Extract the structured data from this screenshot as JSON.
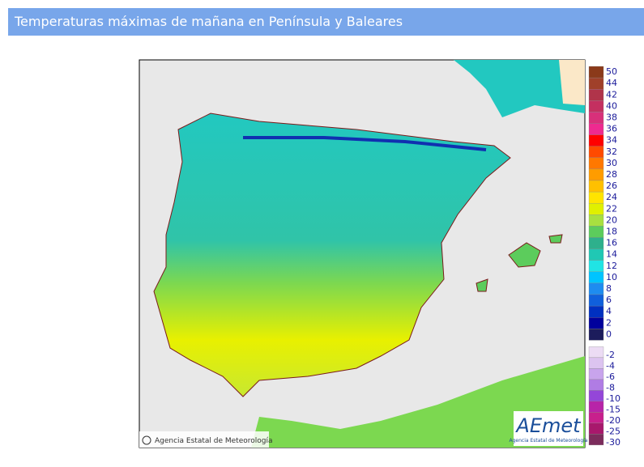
{
  "header": {
    "title": "Temperaturas máximas de mañana en Península y Baleares"
  },
  "map": {
    "credit": "Agencia Estatal de Meteorología",
    "logo": "AEmet",
    "logo_subtitle": "Agencia Estatal de Meteorología"
  },
  "legend": {
    "items": [
      {
        "value": 50,
        "color": "#8b3a1a"
      },
      {
        "value": 44,
        "color": "#a0402a"
      },
      {
        "value": 42,
        "color": "#b0344a"
      },
      {
        "value": 40,
        "color": "#c43060"
      },
      {
        "value": 38,
        "color": "#d8307a"
      },
      {
        "value": 36,
        "color": "#ee2a90"
      },
      {
        "value": 34,
        "color": "#ff0000"
      },
      {
        "value": 32,
        "color": "#ff4a00"
      },
      {
        "value": 30,
        "color": "#ff7800"
      },
      {
        "value": 28,
        "color": "#ff9c00"
      },
      {
        "value": 26,
        "color": "#ffc000"
      },
      {
        "value": 24,
        "color": "#ffe400"
      },
      {
        "value": 22,
        "color": "#e0f000"
      },
      {
        "value": 20,
        "color": "#a8e040"
      },
      {
        "value": 18,
        "color": "#5ccc5c"
      },
      {
        "value": 16,
        "color": "#2eb08c"
      },
      {
        "value": 14,
        "color": "#20c8b4"
      },
      {
        "value": 12,
        "color": "#20e4e4"
      },
      {
        "value": 10,
        "color": "#00c4ff"
      },
      {
        "value": 8,
        "color": "#1e8cf0"
      },
      {
        "value": 6,
        "color": "#1060dc"
      },
      {
        "value": 4,
        "color": "#0030c0"
      },
      {
        "value": 2,
        "color": "#00009c"
      },
      {
        "value": 0,
        "color": "#1c1c5c"
      },
      {
        "value": -2,
        "color": "#ecdcf4"
      },
      {
        "value": -4,
        "color": "#dcc4f0"
      },
      {
        "value": -6,
        "color": "#c8a4ec"
      },
      {
        "value": -8,
        "color": "#b07ce4"
      },
      {
        "value": -10,
        "color": "#9446d8"
      },
      {
        "value": -15,
        "color": "#b824a8"
      },
      {
        "value": -20,
        "color": "#c8208c"
      },
      {
        "value": -25,
        "color": "#a8186c"
      },
      {
        "value": -30,
        "color": "#7c2c5c"
      }
    ]
  }
}
